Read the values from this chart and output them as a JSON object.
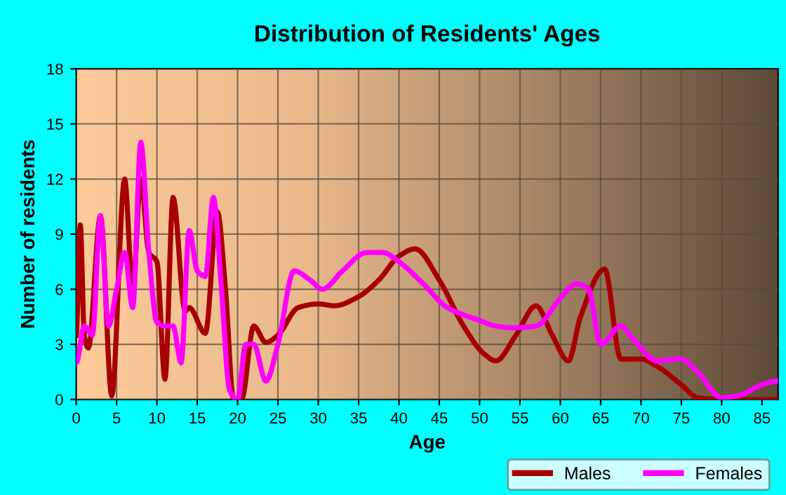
{
  "chart_data": {
    "type": "line",
    "title": "Distribution of Residents' Ages",
    "xlabel": "Age",
    "ylabel": "Number of residents",
    "xlim": [
      0,
      87
    ],
    "xticks": [
      0,
      5,
      10,
      15,
      20,
      25,
      30,
      35,
      40,
      45,
      50,
      55,
      60,
      65,
      70,
      75,
      80,
      85
    ],
    "ylim": [
      0,
      18
    ],
    "yticks": [
      0,
      3,
      6,
      9,
      12,
      15,
      18
    ],
    "grid": true,
    "legend": "bottom right",
    "marker": "none",
    "line_style": "solid",
    "series": [
      {
        "name": "Males",
        "color": "#a80000",
        "x": [
          0,
          0.5,
          1,
          1.5,
          3,
          4.4,
          6,
          7,
          8,
          9,
          10,
          11,
          12,
          13.5,
          14,
          16,
          17.5,
          18.5,
          19.5,
          20.5,
          22,
          23.5,
          25,
          27.5,
          30,
          32,
          35,
          37.5,
          40,
          42,
          45,
          48,
          50.5,
          52,
          54.5,
          57,
          59,
          61,
          62.5,
          65.5,
          67.5,
          70,
          72,
          75,
          77,
          80,
          87
        ],
        "values": [
          3.5,
          9.5,
          3.5,
          2.8,
          10,
          0.2,
          12,
          6,
          12,
          8,
          7.5,
          1.1,
          11,
          4.8,
          5,
          3.6,
          10.2,
          6,
          0,
          0,
          4,
          3.1,
          3.5,
          5,
          5.2,
          5.1,
          5.6,
          6.5,
          7.8,
          8.2,
          6.5,
          4,
          2.5,
          2.1,
          3.5,
          5.1,
          3.5,
          2.1,
          4.5,
          7.1,
          2.2,
          2.2,
          1.8,
          0.8,
          0.1,
          0,
          0
        ]
      },
      {
        "name": "Females",
        "color": "#ff00ff",
        "x": [
          0,
          1,
          2,
          3,
          4,
          5,
          6,
          7,
          8,
          9,
          10,
          11,
          12,
          13,
          14,
          15,
          16,
          17,
          18,
          19,
          20,
          21,
          22,
          23.5,
          25,
          27,
          29,
          30.5,
          33,
          36,
          38,
          40,
          43,
          46,
          50,
          52,
          54,
          57,
          60,
          62,
          63.5,
          65,
          67.5,
          69,
          72,
          75,
          77,
          80,
          82,
          85,
          87
        ],
        "values": [
          2,
          4,
          3.5,
          10,
          4,
          6,
          8,
          5,
          14,
          8,
          4.2,
          4,
          4,
          2,
          9.2,
          7,
          6.7,
          11,
          6,
          0.5,
          0,
          3,
          3,
          1,
          3,
          7,
          6.5,
          6,
          7,
          8,
          8,
          7.5,
          6.3,
          5,
          4.3,
          4,
          3.9,
          4,
          5.5,
          6.3,
          6,
          3,
          4,
          3.3,
          2.1,
          2.2,
          1.5,
          0.1,
          0.2,
          0.8,
          1
        ]
      }
    ]
  }
}
